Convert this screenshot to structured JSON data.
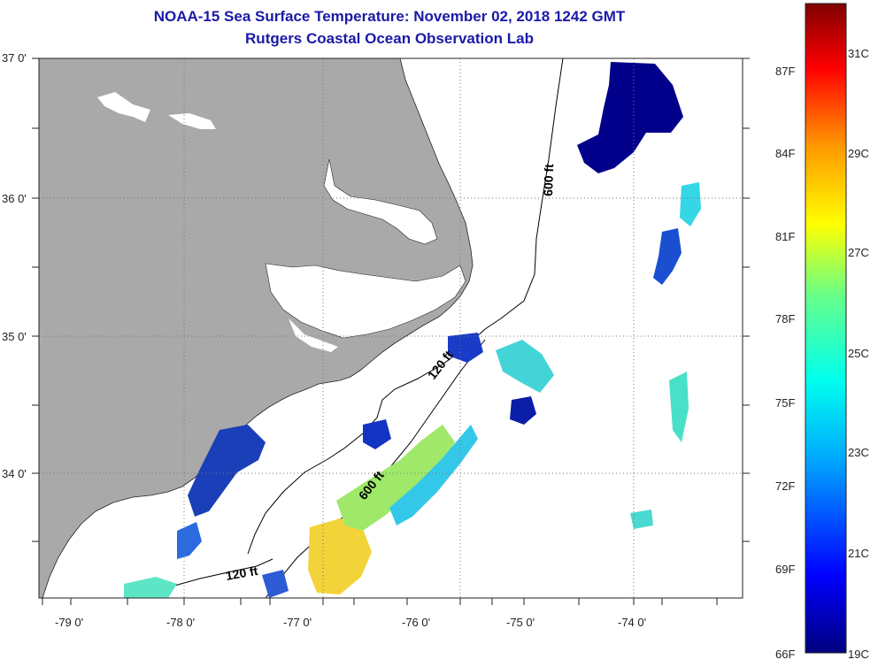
{
  "header": {
    "title": "NOAA-15 Sea Surface Temperature:  November 02, 2018 1242 GMT",
    "subtitle": "Rutgers Coastal Ocean Observation Lab"
  },
  "axes": {
    "lat_labels": [
      "37 0'",
      "36 0'",
      "35 0'",
      "34 0'"
    ],
    "lon_labels": [
      "-79 0'",
      "-78 0'",
      "-77 0'",
      "-76 0'",
      "-75 0'",
      "-74 0'"
    ]
  },
  "contours": {
    "c600_north": "600 ft",
    "c120_mid": "120 ft",
    "c600_south": "600 ft",
    "c120_south": "120 ft"
  },
  "colorbar": {
    "f_labels": [
      "87F",
      "84F",
      "81F",
      "78F",
      "75F",
      "72F",
      "69F",
      "66F"
    ],
    "c_labels": [
      "31C",
      "29C",
      "27C",
      "25C",
      "23C",
      "21C",
      "19C"
    ]
  },
  "colors": {
    "land": "#a9a9a9",
    "title": "#1a1aa6",
    "grid": "#777777"
  }
}
